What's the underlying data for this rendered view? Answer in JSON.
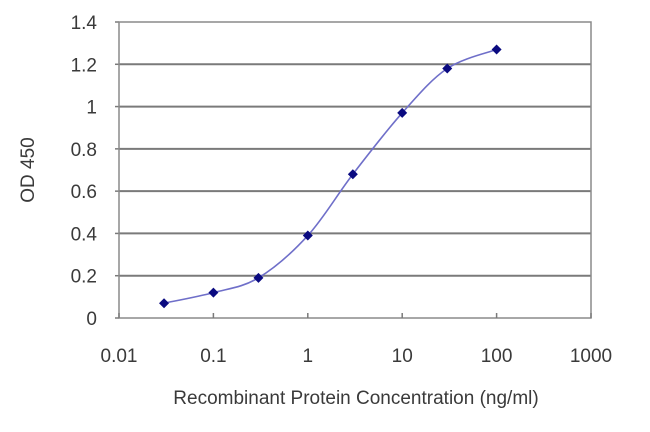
{
  "chart_data": {
    "type": "line",
    "title": "",
    "xlabel": "Recombinant Protein Concentration (ng/ml)",
    "ylabel": "OD 450",
    "xscale": "log",
    "xlim": [
      0.01,
      1000
    ],
    "ylim": [
      0,
      1.4
    ],
    "grid": "horizontal",
    "legend": "none",
    "x_ticks": [
      "0.01",
      "0.1",
      "1",
      "10",
      "100",
      "1000"
    ],
    "y_ticks": [
      "0",
      "0.2",
      "0.4",
      "0.6",
      "0.8",
      "1",
      "1.2",
      "1.4"
    ],
    "series": [
      {
        "name": "OD 450",
        "line_color": "#6f6fc9",
        "marker": "diamond",
        "marker_color": "#0a0a80",
        "x": [
          0.03,
          0.1,
          0.3,
          1,
          3,
          10,
          30,
          100
        ],
        "values": [
          0.07,
          0.12,
          0.19,
          0.39,
          0.68,
          0.97,
          1.18,
          1.27
        ]
      }
    ]
  }
}
